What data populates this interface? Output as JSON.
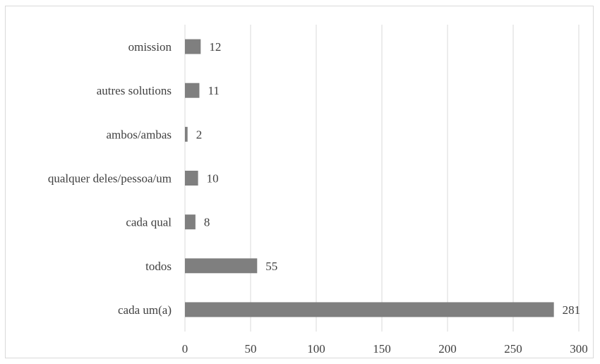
{
  "chart_data": {
    "type": "bar",
    "orientation": "horizontal",
    "title": "",
    "xlabel": "",
    "ylabel": "",
    "categories": [
      "omission",
      "autres solutions",
      "ambos/ambas",
      "qualquer deles/pessoa/um",
      "cada qual",
      "todos",
      "cada um(a)"
    ],
    "values": [
      12,
      11,
      2,
      10,
      8,
      55,
      281
    ],
    "data_labels": [
      "12",
      "11",
      "2",
      "10",
      "8",
      "55",
      "281"
    ],
    "xlim": [
      0,
      300
    ],
    "xticks": [
      0,
      50,
      100,
      150,
      200,
      250,
      300
    ],
    "xtick_labels": [
      "0",
      "50",
      "100",
      "150",
      "200",
      "250",
      "300"
    ],
    "grid": "vertical",
    "legend": "none",
    "colors": {
      "bar": "#7f7f7f",
      "grid": "#d9d9d9",
      "text": "#404040"
    }
  }
}
